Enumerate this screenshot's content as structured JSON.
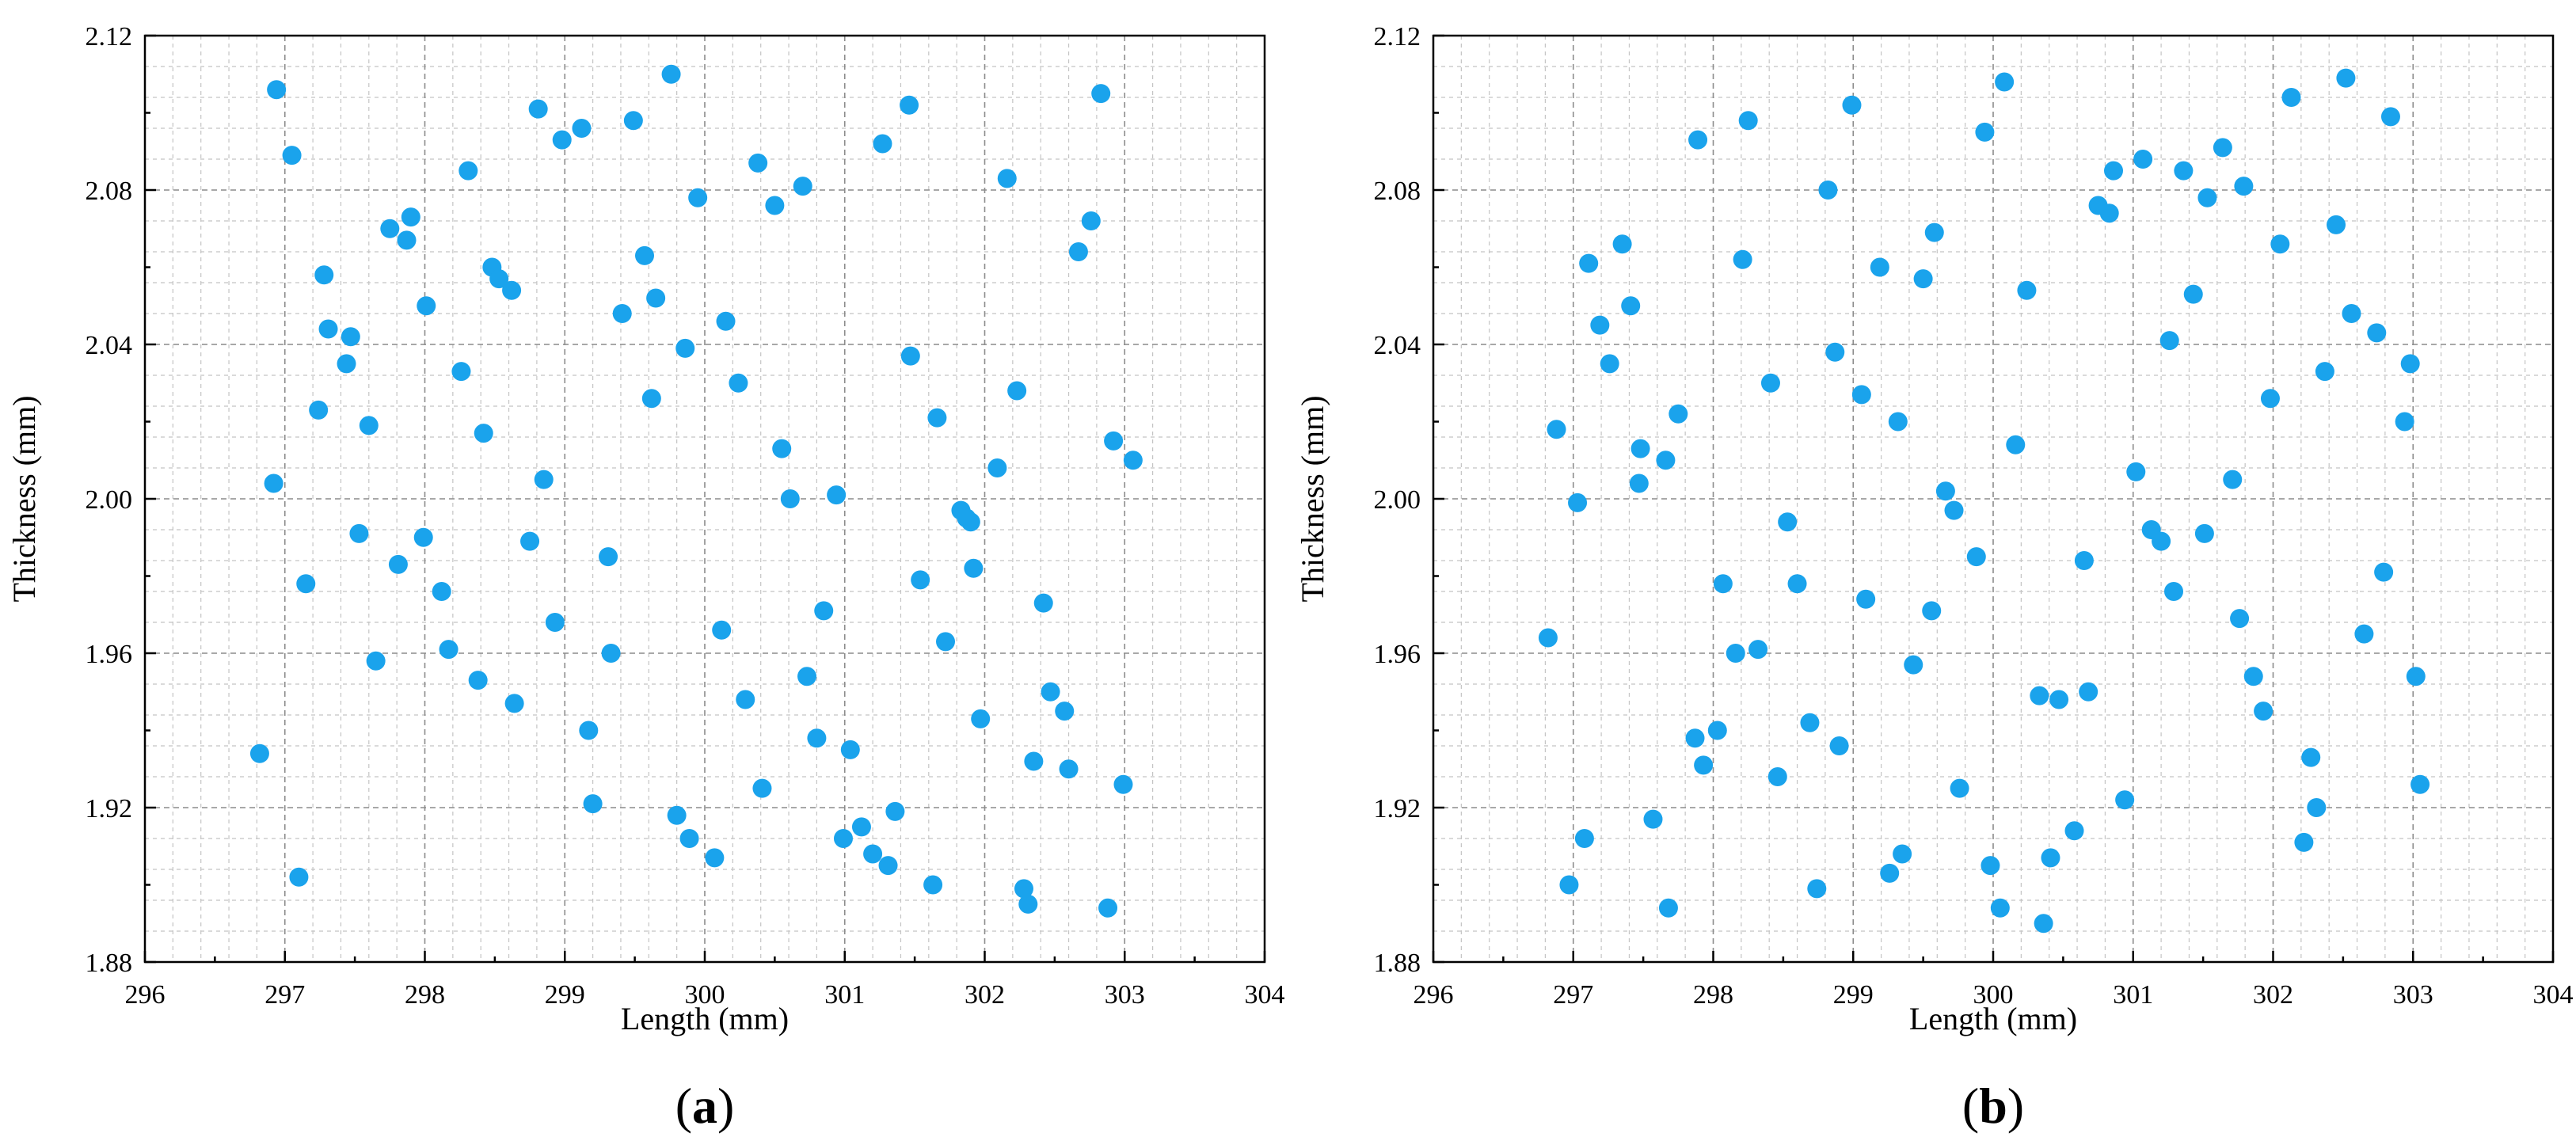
{
  "point_color": "#1aa3ec",
  "chart_data": [
    {
      "id": "a",
      "type": "scatter",
      "panel_label": "a",
      "xlabel": "Length (mm)",
      "ylabel": "Thickness (mm)",
      "xlim": [
        296,
        304
      ],
      "ylim": [
        1.88,
        2.12
      ],
      "xticks": [
        296,
        297,
        298,
        299,
        300,
        301,
        302,
        303,
        304
      ],
      "xtick_labels": [
        "296",
        "297",
        "298",
        "299",
        "300",
        "301",
        "302",
        "303",
        "304"
      ],
      "yticks": [
        1.88,
        1.92,
        1.96,
        2.0,
        2.04,
        2.08,
        2.12
      ],
      "ytick_labels": [
        "1.88",
        "1.92",
        "1.96",
        "2.00",
        "2.04",
        "2.08",
        "2.12"
      ],
      "grid": true,
      "points": [
        [
          296.94,
          2.106
        ],
        [
          297.05,
          2.089
        ],
        [
          296.92,
          2.004
        ],
        [
          297.15,
          1.978
        ],
        [
          296.82,
          1.934
        ],
        [
          297.1,
          1.902
        ],
        [
          297.28,
          2.058
        ],
        [
          297.31,
          2.044
        ],
        [
          297.44,
          2.035
        ],
        [
          297.47,
          2.042
        ],
        [
          297.24,
          2.023
        ],
        [
          297.53,
          1.991
        ],
        [
          297.6,
          2.019
        ],
        [
          297.65,
          1.958
        ],
        [
          297.75,
          2.07
        ],
        [
          297.81,
          1.983
        ],
        [
          297.87,
          2.067
        ],
        [
          297.9,
          2.073
        ],
        [
          298.01,
          2.05
        ],
        [
          297.99,
          1.99
        ],
        [
          298.12,
          1.976
        ],
        [
          298.17,
          1.961
        ],
        [
          298.26,
          2.033
        ],
        [
          298.31,
          2.085
        ],
        [
          298.38,
          1.953
        ],
        [
          298.42,
          2.017
        ],
        [
          298.48,
          2.06
        ],
        [
          298.53,
          2.057
        ],
        [
          298.62,
          2.054
        ],
        [
          298.64,
          1.947
        ],
        [
          298.75,
          1.989
        ],
        [
          298.81,
          2.101
        ],
        [
          298.85,
          2.005
        ],
        [
          298.93,
          1.968
        ],
        [
          298.98,
          2.093
        ],
        [
          299.12,
          2.096
        ],
        [
          299.17,
          1.94
        ],
        [
          299.2,
          1.921
        ],
        [
          299.31,
          1.985
        ],
        [
          299.33,
          1.96
        ],
        [
          299.41,
          2.048
        ],
        [
          299.49,
          2.098
        ],
        [
          299.57,
          2.063
        ],
        [
          299.62,
          2.026
        ],
        [
          299.65,
          2.052
        ],
        [
          299.76,
          2.11
        ],
        [
          299.8,
          1.918
        ],
        [
          299.86,
          2.039
        ],
        [
          299.89,
          1.912
        ],
        [
          299.95,
          2.078
        ],
        [
          300.07,
          1.907
        ],
        [
          300.12,
          1.966
        ],
        [
          300.15,
          2.046
        ],
        [
          300.24,
          2.03
        ],
        [
          300.29,
          1.948
        ],
        [
          300.38,
          2.087
        ],
        [
          300.41,
          1.925
        ],
        [
          300.5,
          2.076
        ],
        [
          300.55,
          2.013
        ],
        [
          300.61,
          2.0
        ],
        [
          300.7,
          2.081
        ],
        [
          300.73,
          1.954
        ],
        [
          300.8,
          1.938
        ],
        [
          300.85,
          1.971
        ],
        [
          300.94,
          2.001
        ],
        [
          300.99,
          1.912
        ],
        [
          301.04,
          1.935
        ],
        [
          301.12,
          1.915
        ],
        [
          301.2,
          1.908
        ],
        [
          301.27,
          2.092
        ],
        [
          301.31,
          1.905
        ],
        [
          301.36,
          1.919
        ],
        [
          301.46,
          2.102
        ],
        [
          301.47,
          2.037
        ],
        [
          301.54,
          1.979
        ],
        [
          301.63,
          1.9
        ],
        [
          301.66,
          2.021
        ],
        [
          301.72,
          1.963
        ],
        [
          301.83,
          1.997
        ],
        [
          301.87,
          1.995
        ],
        [
          301.9,
          1.994
        ],
        [
          301.92,
          1.982
        ],
        [
          301.97,
          1.943
        ],
        [
          302.09,
          2.008
        ],
        [
          302.16,
          2.083
        ],
        [
          302.23,
          2.028
        ],
        [
          302.28,
          1.899
        ],
        [
          302.31,
          1.895
        ],
        [
          302.35,
          1.932
        ],
        [
          302.42,
          1.973
        ],
        [
          302.47,
          1.95
        ],
        [
          302.57,
          1.945
        ],
        [
          302.6,
          1.93
        ],
        [
          302.67,
          2.064
        ],
        [
          302.76,
          2.072
        ],
        [
          302.83,
          2.105
        ],
        [
          302.88,
          1.894
        ],
        [
          302.92,
          2.015
        ],
        [
          302.99,
          1.926
        ],
        [
          303.06,
          2.01
        ]
      ]
    },
    {
      "id": "b",
      "type": "scatter",
      "panel_label": "b",
      "xlabel": "Length (mm)",
      "ylabel": "Thickness (mm)",
      "xlim": [
        296,
        304
      ],
      "ylim": [
        1.88,
        2.12
      ],
      "xticks": [
        296,
        297,
        298,
        299,
        300,
        301,
        302,
        303,
        304
      ],
      "xtick_labels": [
        "296",
        "297",
        "298",
        "299",
        "300",
        "301",
        "302",
        "303",
        "304"
      ],
      "yticks": [
        1.88,
        1.92,
        1.96,
        2.0,
        2.04,
        2.08,
        2.12
      ],
      "ytick_labels": [
        "1.88",
        "1.92",
        "1.96",
        "2.00",
        "2.04",
        "2.08",
        "2.12"
      ],
      "grid": true,
      "points": [
        [
          296.82,
          1.964
        ],
        [
          296.88,
          2.018
        ],
        [
          296.97,
          1.9
        ],
        [
          297.03,
          1.999
        ],
        [
          297.08,
          1.912
        ],
        [
          297.11,
          2.061
        ],
        [
          297.19,
          2.045
        ],
        [
          297.26,
          2.035
        ],
        [
          297.35,
          2.066
        ],
        [
          297.41,
          2.05
        ],
        [
          297.48,
          2.013
        ],
        [
          297.47,
          2.004
        ],
        [
          297.57,
          1.917
        ],
        [
          297.66,
          2.01
        ],
        [
          297.68,
          1.894
        ],
        [
          297.75,
          2.022
        ],
        [
          297.87,
          1.938
        ],
        [
          297.89,
          2.093
        ],
        [
          297.93,
          1.931
        ],
        [
          298.03,
          1.94
        ],
        [
          298.07,
          1.978
        ],
        [
          298.16,
          1.96
        ],
        [
          298.21,
          2.062
        ],
        [
          298.25,
          2.098
        ],
        [
          298.32,
          1.961
        ],
        [
          298.41,
          2.03
        ],
        [
          298.46,
          1.928
        ],
        [
          298.53,
          1.994
        ],
        [
          298.6,
          1.978
        ],
        [
          298.69,
          1.942
        ],
        [
          298.74,
          1.899
        ],
        [
          298.82,
          2.08
        ],
        [
          298.87,
          2.038
        ],
        [
          298.9,
          1.936
        ],
        [
          298.99,
          2.102
        ],
        [
          299.06,
          2.027
        ],
        [
          299.09,
          1.974
        ],
        [
          299.19,
          2.06
        ],
        [
          299.26,
          1.903
        ],
        [
          299.32,
          2.02
        ],
        [
          299.35,
          1.908
        ],
        [
          299.43,
          1.957
        ],
        [
          299.5,
          2.057
        ],
        [
          299.56,
          1.971
        ],
        [
          299.58,
          2.069
        ],
        [
          299.66,
          2.002
        ],
        [
          299.72,
          1.997
        ],
        [
          299.76,
          1.925
        ],
        [
          299.88,
          1.985
        ],
        [
          299.94,
          2.095
        ],
        [
          299.98,
          1.905
        ],
        [
          300.05,
          1.894
        ],
        [
          300.08,
          2.108
        ],
        [
          300.16,
          2.014
        ],
        [
          300.24,
          2.054
        ],
        [
          300.33,
          1.949
        ],
        [
          300.36,
          1.89
        ],
        [
          300.41,
          1.907
        ],
        [
          300.47,
          1.948
        ],
        [
          300.58,
          1.914
        ],
        [
          300.65,
          1.984
        ],
        [
          300.68,
          1.95
        ],
        [
          300.75,
          2.076
        ],
        [
          300.83,
          2.074
        ],
        [
          300.86,
          2.085
        ],
        [
          300.94,
          1.922
        ],
        [
          301.02,
          2.007
        ],
        [
          301.07,
          2.088
        ],
        [
          301.13,
          1.992
        ],
        [
          301.2,
          1.989
        ],
        [
          301.26,
          2.041
        ],
        [
          301.29,
          1.976
        ],
        [
          301.36,
          2.085
        ],
        [
          301.43,
          2.053
        ],
        [
          301.51,
          1.991
        ],
        [
          301.53,
          2.078
        ],
        [
          301.64,
          2.091
        ],
        [
          301.71,
          2.005
        ],
        [
          301.76,
          1.969
        ],
        [
          301.79,
          2.081
        ],
        [
          301.86,
          1.954
        ],
        [
          301.93,
          1.945
        ],
        [
          301.98,
          2.026
        ],
        [
          302.05,
          2.066
        ],
        [
          302.13,
          2.104
        ],
        [
          302.22,
          1.911
        ],
        [
          302.27,
          1.933
        ],
        [
          302.31,
          1.92
        ],
        [
          302.37,
          2.033
        ],
        [
          302.45,
          2.071
        ],
        [
          302.52,
          2.109
        ],
        [
          302.56,
          2.048
        ],
        [
          302.65,
          1.965
        ],
        [
          302.74,
          2.043
        ],
        [
          302.79,
          1.981
        ],
        [
          302.84,
          2.099
        ],
        [
          302.94,
          2.02
        ],
        [
          302.98,
          2.035
        ],
        [
          303.02,
          1.954
        ],
        [
          303.05,
          1.926
        ]
      ]
    }
  ]
}
